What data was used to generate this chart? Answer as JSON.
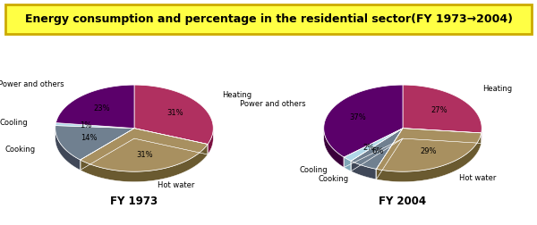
{
  "title": "Energy consumption and percentage in the residential sector(FY 1973→2004)",
  "title_bg": "#FFFF44",
  "title_border": "#CCAA00",
  "chart1_label": "FY 1973",
  "chart2_label": "FY 2004",
  "categories": [
    "Heating",
    "Hot water",
    "Cooking",
    "Cooling",
    "Power and others"
  ],
  "values_1973": [
    31,
    31,
    14,
    1,
    23
  ],
  "values_2004": [
    27,
    29,
    6,
    2,
    37
  ],
  "labels_1973": [
    "31%",
    "31%",
    "14%",
    "1%",
    "23%"
  ],
  "labels_2004": [
    "27%",
    "29%",
    "6%",
    "2%",
    "37%"
  ],
  "colors_top": [
    "#B03060",
    "#A89060",
    "#708090",
    "#B0D8E8",
    "#5B006A"
  ],
  "colors_side": [
    "#7A1040",
    "#6A5A30",
    "#404858",
    "#80A8B8",
    "#3A003A"
  ],
  "bg_color": "#FFFFFF",
  "fig_bg": "#FFFFFF",
  "startangle_1973": 90,
  "startangle_2004": 90
}
